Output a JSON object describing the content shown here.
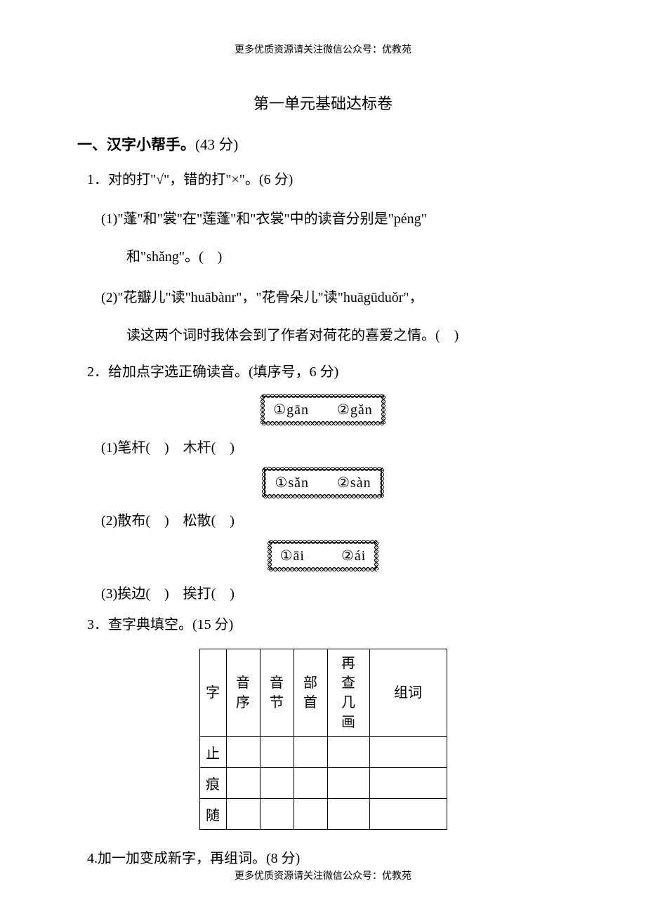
{
  "header_note": "更多优质资源请关注微信公众号：优教苑",
  "footer_note": "更多优质资源请关注微信公众号：优教苑",
  "title": "第一单元基础达标卷",
  "section1": {
    "heading_main": "一、汉字小帮手。",
    "heading_points": "(43 分)"
  },
  "q1": {
    "text": "1．对的打\"√\"，错的打\"×\"。(6 分)",
    "item1_line1": "(1)\"蓬\"和\"裳\"在\"莲蓬\"和\"衣裳\"中的读音分别是\"péng\"",
    "item1_line2": "和\"shǎng\"。(　)",
    "item2_line1": "(2)\"花瓣儿\"读\"huābànr\"，\"花骨朵儿\"读\"huāgūduǒr\"，",
    "item2_line2": "读这两个词时我体会到了作者对荷花的喜爱之情。(　)"
  },
  "q2": {
    "text": "2．给加点字选正确读音。(填序号，6 分)",
    "box1_opt1": "①gān",
    "box1_opt2": "②gǎn",
    "item1": "(1)笔杆(　)　木杆(　)",
    "box2_opt1": "①sǎn",
    "box2_opt2": "②sàn",
    "item2": "(2)散布(　)　松散(　)",
    "box3_opt1": "①āi",
    "box3_opt2": "②ái",
    "item3": "(3)挨边(　)　挨打(　)"
  },
  "q3": {
    "text": "3．查字典填空。(15 分)",
    "table": {
      "headers": {
        "c1": "字",
        "c2": "音序",
        "c3": "音节",
        "c4": "部首",
        "c5": "再查\n几画",
        "c6": "组词"
      },
      "rows": [
        {
          "char": "止"
        },
        {
          "char": "痕"
        },
        {
          "char": "随"
        }
      ]
    }
  },
  "q4": {
    "text": "4.加一加变成新字，再组词。(8 分)"
  }
}
